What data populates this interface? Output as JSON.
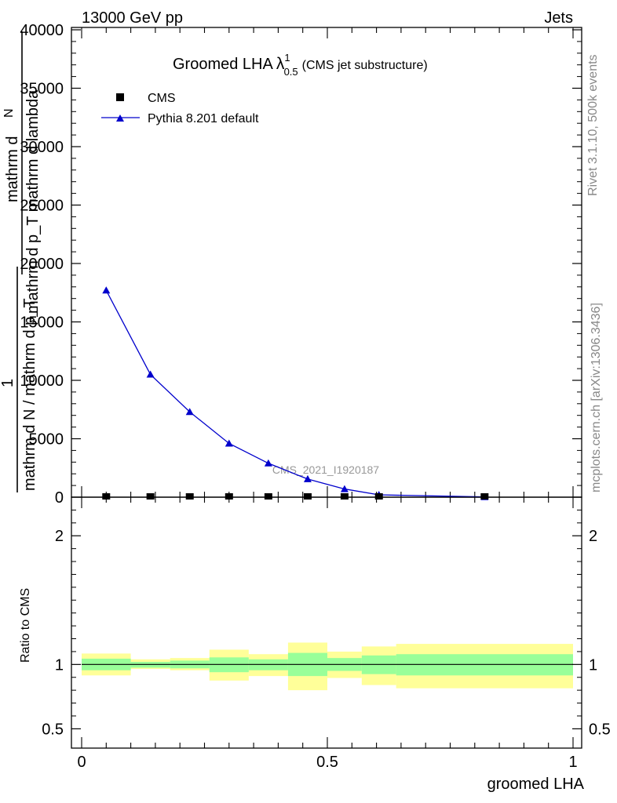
{
  "header": {
    "left": "13000 GeV pp",
    "right": "Jets"
  },
  "side_labels": {
    "rivet": "Rivet 3.1.10,  500k events",
    "mcplots": "mcplots.cern.ch [arXiv:1306.3436]"
  },
  "chart_data": [
    {
      "type": "line",
      "title_main": "Groomed LHA",
      "title_lambda": "λ",
      "title_sup": "1",
      "title_sub": "0.5",
      "title_suffix": "(CMS jet substructure)",
      "watermark": "CMS_2021_I1920187",
      "ylabel_numerator_a": "mathrm d",
      "ylabel_numerator_b": "N",
      "ylabel_denominator": "mathrm d p_T mathrm d lambda",
      "ylabel_prefactor_numerator": "1",
      "ylabel_prefactor_denominator": "mathrm d N / mathrm d p_T",
      "ylim": [
        0,
        40000
      ],
      "xlim": [
        0,
        1
      ],
      "yticks": [
        {
          "value": 0,
          "label": "0"
        },
        {
          "value": 5000,
          "label": "5000"
        },
        {
          "value": 10000,
          "label": "10000"
        },
        {
          "value": 15000,
          "label": "15000"
        },
        {
          "value": 20000,
          "label": "20000"
        },
        {
          "value": 25000,
          "label": "25000"
        },
        {
          "value": 30000,
          "label": "30000"
        },
        {
          "value": 35000,
          "label": "35000"
        },
        {
          "value": 40000,
          "label": "40000"
        }
      ],
      "legend_placement": "top-left",
      "series": [
        {
          "name": "CMS",
          "marker": "square",
          "color": "#000000",
          "x": [
            0.05,
            0.14,
            0.22,
            0.3,
            0.38,
            0.46,
            0.535,
            0.605,
            0.82
          ],
          "y": [
            0,
            0,
            0,
            0,
            0,
            0,
            0,
            0,
            0
          ]
        },
        {
          "name": "Pythia 8.201 default",
          "marker": "triangle",
          "color": "#0000cc",
          "x": [
            0.05,
            0.14,
            0.22,
            0.3,
            0.38,
            0.46,
            0.535,
            0.605,
            0.82
          ],
          "y": [
            17700,
            10500,
            7300,
            4600,
            2900,
            1550,
            700,
            200,
            20
          ]
        }
      ]
    },
    {
      "type": "area",
      "ylabel": "Ratio to CMS",
      "xlabel": "groomed LHA",
      "ylim": [
        0.35,
        2.3
      ],
      "xlim": [
        0,
        1
      ],
      "yticks": [
        {
          "value": 0.5,
          "label": "0.5"
        },
        {
          "value": 1,
          "label": "1"
        },
        {
          "value": 2,
          "label": "2"
        }
      ],
      "xticks": [
        {
          "value": 0,
          "label": "0"
        },
        {
          "value": 0.5,
          "label": "0.5"
        },
        {
          "value": 1,
          "label": "1"
        }
      ],
      "reference_line": 1,
      "bands": [
        {
          "x0": 0.0,
          "x1": 0.1,
          "inner_lo": 0.955,
          "inner_hi": 1.045,
          "outer_lo": 0.915,
          "outer_hi": 1.085
        },
        {
          "x0": 0.1,
          "x1": 0.18,
          "inner_lo": 0.975,
          "inner_hi": 1.02,
          "outer_lo": 0.965,
          "outer_hi": 1.04
        },
        {
          "x0": 0.18,
          "x1": 0.26,
          "inner_lo": 0.97,
          "inner_hi": 1.03,
          "outer_lo": 0.955,
          "outer_hi": 1.05
        },
        {
          "x0": 0.26,
          "x1": 0.34,
          "inner_lo": 0.94,
          "inner_hi": 1.055,
          "outer_lo": 0.875,
          "outer_hi": 1.115
        },
        {
          "x0": 0.34,
          "x1": 0.42,
          "inner_lo": 0.955,
          "inner_hi": 1.04,
          "outer_lo": 0.91,
          "outer_hi": 1.08
        },
        {
          "x0": 0.42,
          "x1": 0.5,
          "inner_lo": 0.91,
          "inner_hi": 1.09,
          "outer_lo": 0.8,
          "outer_hi": 1.17
        },
        {
          "x0": 0.5,
          "x1": 0.57,
          "inner_lo": 0.95,
          "inner_hi": 1.05,
          "outer_lo": 0.895,
          "outer_hi": 1.1
        },
        {
          "x0": 0.57,
          "x1": 0.64,
          "inner_lo": 0.925,
          "inner_hi": 1.07,
          "outer_lo": 0.84,
          "outer_hi": 1.14
        },
        {
          "x0": 0.64,
          "x1": 1.0,
          "inner_lo": 0.915,
          "inner_hi": 1.08,
          "outer_lo": 0.815,
          "outer_hi": 1.16
        }
      ],
      "inner_color": "#99ff99",
      "outer_color": "#ffff99"
    }
  ]
}
